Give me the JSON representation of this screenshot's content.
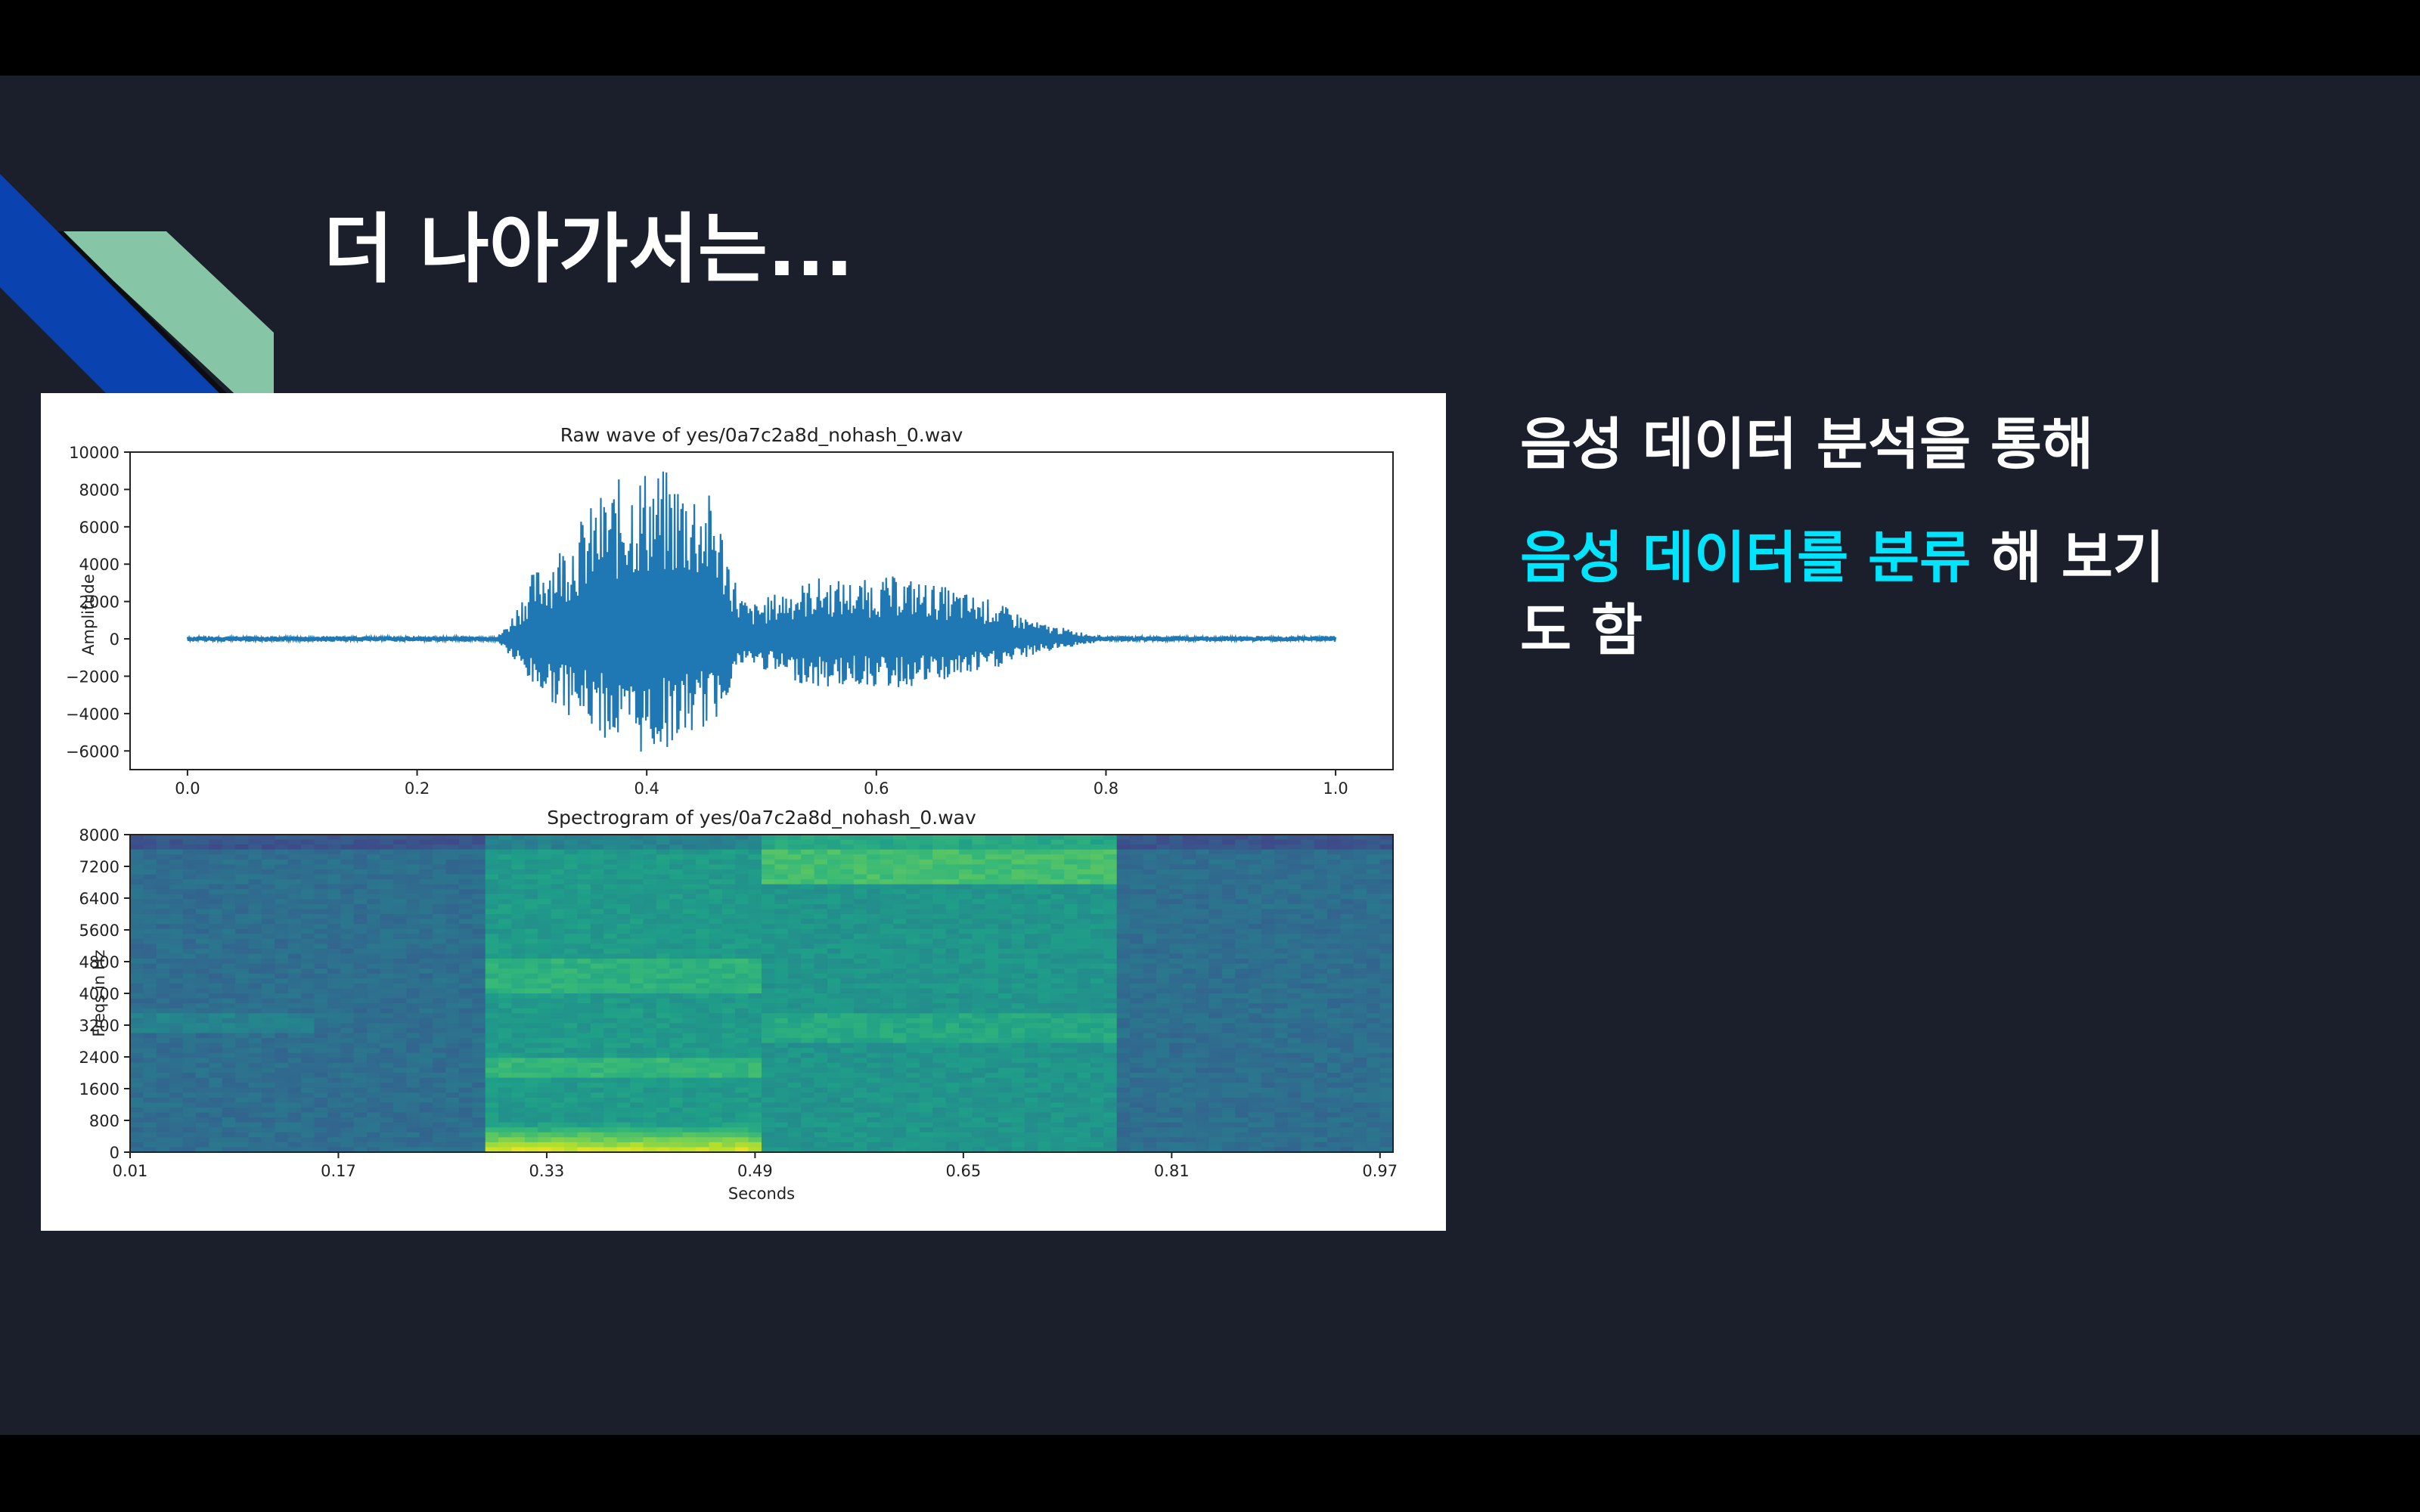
{
  "slide": {
    "title": "더 나아가서는...",
    "bullet_1": "음성 데이터 분석을 통해",
    "bullet_2_highlight": "음성 데이터를 분류",
    "bullet_2_rest": " 해 보기도 함",
    "colors": {
      "background": "#1b1f2b",
      "accent_text": "#00e5ff",
      "deco_blue": "#0a43b0",
      "deco_green": "#86c6a6",
      "wave": "#1f77b4"
    }
  },
  "chart_data": [
    {
      "type": "line",
      "title": "Raw wave of yes/0a7c2a8d_nohash_0.wav",
      "xlabel": "",
      "ylabel": "Amplitude",
      "xlim": [
        -0.05,
        1.05
      ],
      "ylim": [
        -7000,
        10000
      ],
      "x_ticks": [
        "0.0",
        "0.2",
        "0.4",
        "0.6",
        "0.8",
        "1.0"
      ],
      "x_tick_values": [
        0.0,
        0.2,
        0.4,
        0.6,
        0.8,
        1.0
      ],
      "y_ticks": [
        "10000",
        "8000",
        "6000",
        "4000",
        "2000",
        "0",
        "−2000",
        "−4000",
        "−6000"
      ],
      "y_tick_values": [
        10000,
        8000,
        6000,
        4000,
        2000,
        0,
        -2000,
        -4000,
        -6000
      ],
      "envelope": {
        "x": [
          0.0,
          0.27,
          0.28,
          0.3,
          0.33,
          0.36,
          0.38,
          0.4,
          0.42,
          0.44,
          0.46,
          0.48,
          0.49,
          0.52,
          0.55,
          0.58,
          0.62,
          0.66,
          0.7,
          0.74,
          0.78,
          0.8,
          1.0
        ],
        "upper": [
          150,
          150,
          900,
          3500,
          5500,
          7800,
          8800,
          9300,
          9000,
          8600,
          7500,
          2600,
          1800,
          2700,
          3300,
          3100,
          3400,
          2800,
          2100,
          900,
          350,
          150,
          150
        ],
        "lower": [
          -150,
          -150,
          -900,
          -2600,
          -4000,
          -5200,
          -6000,
          -6300,
          -5800,
          -5200,
          -4500,
          -1600,
          -1400,
          -2100,
          -2700,
          -2500,
          -2700,
          -2300,
          -1700,
          -800,
          -300,
          -150,
          -150
        ]
      }
    },
    {
      "type": "heatmap",
      "title": "Spectrogram of yes/0a7c2a8d_nohash_0.wav",
      "xlabel": "Seconds",
      "ylabel": "Freqs in Hz",
      "colormap": "viridis",
      "xlim": [
        0.01,
        0.98
      ],
      "ylim": [
        0,
        8000
      ],
      "x_ticks": [
        "0.01",
        "0.17",
        "0.33",
        "0.49",
        "0.65",
        "0.81",
        "0.97"
      ],
      "x_tick_values": [
        0.01,
        0.17,
        0.33,
        0.49,
        0.65,
        0.81,
        0.97
      ],
      "y_ticks": [
        "8000",
        "7200",
        "6400",
        "5600",
        "4800",
        "4000",
        "3200",
        "2400",
        "1600",
        "800",
        "0"
      ],
      "y_tick_values": [
        8000,
        7200,
        6400,
        5600,
        4800,
        4000,
        3200,
        2400,
        1600,
        800,
        0
      ]
    }
  ]
}
